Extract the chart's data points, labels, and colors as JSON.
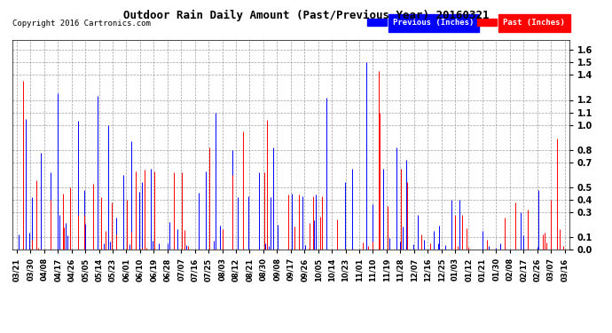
{
  "title": "Outdoor Rain Daily Amount (Past/Previous Year) 20160321",
  "copyright_text": "Copyright 2016 Cartronics.com",
  "legend_labels": [
    "Previous (Inches)",
    "Past (Inches)"
  ],
  "legend_colors": [
    "#0000ff",
    "#ff0000"
  ],
  "background_color": "#ffffff",
  "plot_bg_color": "#ffffff",
  "yticks": [
    0.0,
    0.1,
    0.3,
    0.4,
    0.5,
    0.7,
    0.8,
    1.0,
    1.1,
    1.2,
    1.4,
    1.5,
    1.6
  ],
  "ylim": [
    0.0,
    1.68
  ],
  "x_labels": [
    "03/21",
    "03/30",
    "04/08",
    "04/17",
    "04/26",
    "05/05",
    "05/14",
    "05/23",
    "06/01",
    "06/10",
    "06/19",
    "06/28",
    "07/07",
    "07/16",
    "07/25",
    "08/03",
    "08/12",
    "08/21",
    "08/30",
    "09/08",
    "09/17",
    "09/26",
    "10/05",
    "10/14",
    "10/23",
    "11/01",
    "11/10",
    "11/19",
    "11/28",
    "12/07",
    "12/16",
    "12/25",
    "01/03",
    "01/12",
    "01/21",
    "01/30",
    "02/08",
    "02/17",
    "02/26",
    "03/07",
    "03/16"
  ],
  "n_points": 360,
  "figwidth": 6.9,
  "figheight": 3.75,
  "dpi": 100
}
